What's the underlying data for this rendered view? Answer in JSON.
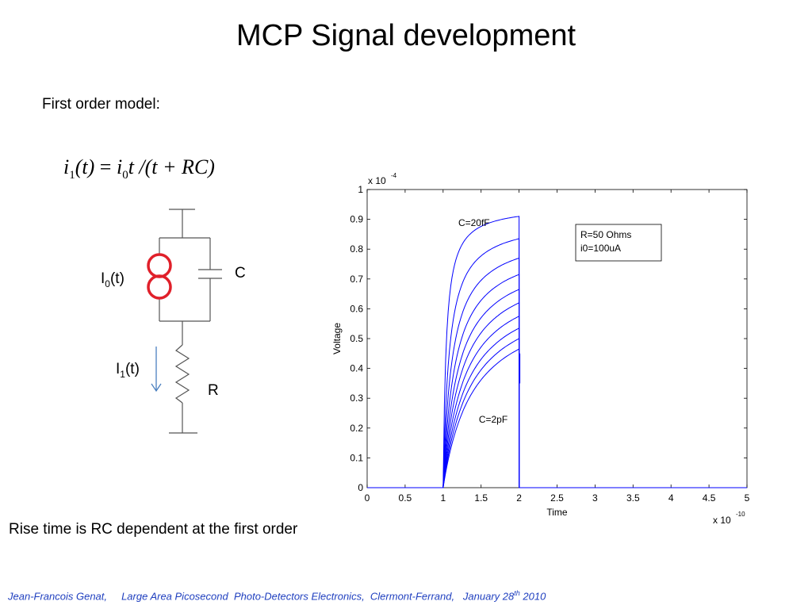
{
  "slide": {
    "title": "MCP  Signal development",
    "subtitle": "First order model:",
    "conclusion": "Rise time is  RC dependent at the first order",
    "footer_prefix": "Jean-Francois Genat,     Large Area Picosecond  Photo-Detectors Electronics,  Clermont-Ferrand,   January 28",
    "footer_sup": "th",
    "footer_suffix": " 2010"
  },
  "formula": {
    "lhs_var": "i",
    "lhs_sub": "1",
    "lhs_arg": "(t)",
    "eq": " = ",
    "rhs_var": "i",
    "rhs_sub": "0",
    "rhs_rest": "t /(t + RC)"
  },
  "circuit": {
    "source_label": "I",
    "source_sub": "0",
    "source_suffix": "(t)",
    "capacitor_label": "C",
    "current_label": "I",
    "current_sub": "1",
    "current_suffix": "(t)",
    "resistor_label": "R",
    "source_color": "#e0202a",
    "arrow_color": "#4a7fbf"
  },
  "chart_data": {
    "type": "line",
    "xlabel": "Time",
    "ylabel": "Voltage",
    "x_exponent_label": "x 10",
    "x_exponent": "-10",
    "y_exponent_label": "x 10",
    "y_exponent": "-4",
    "xlim": [
      0,
      5
    ],
    "ylim": [
      0,
      1
    ],
    "x_ticks": [
      "0",
      "0.5",
      "1",
      "1.5",
      "2",
      "2.5",
      "3",
      "3.5",
      "4",
      "4.5",
      "5"
    ],
    "y_ticks": [
      "0",
      "0.1",
      "0.2",
      "0.3",
      "0.4",
      "0.5",
      "0.6",
      "0.7",
      "0.8",
      "0.9",
      "1"
    ],
    "legend": [
      "R=50 Ohms",
      "i0=100uA"
    ],
    "legend_position": "top-right",
    "annotations": [
      {
        "text": "C=20fF",
        "x": 1.2,
        "y": 0.91
      },
      {
        "text": "C=2pF",
        "x": 1.47,
        "y": 0.25
      }
    ],
    "line_color": "#0000ff",
    "pulse_start": 1,
    "pulse_end": 2,
    "series_end_values": [
      0.91,
      0.835,
      0.77,
      0.715,
      0.665,
      0.62,
      0.575,
      0.535,
      0.5,
      0.465
    ],
    "post_pulse_marker": 0.45
  }
}
